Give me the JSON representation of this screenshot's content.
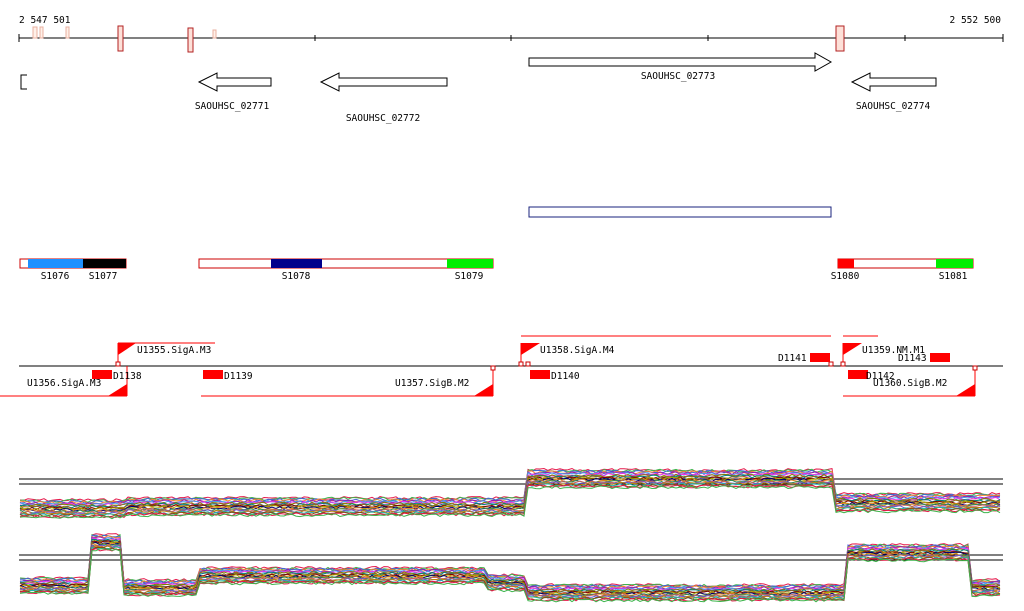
{
  "ruler": {
    "start_label": "2 547 501",
    "end_label": "2 552 500"
  },
  "genes": [
    {
      "name": "SAOUHSC_02771",
      "strand": "-"
    },
    {
      "name": "SAOUHSC_02772",
      "strand": "-"
    },
    {
      "name": "SAOUHSC_02773",
      "strand": "+"
    },
    {
      "name": "SAOUHSC_02774",
      "strand": "-"
    }
  ],
  "segments": [
    {
      "name": "S1076",
      "color": "#1e90ff"
    },
    {
      "name": "S1077",
      "color": "#000000"
    },
    {
      "name": "S1078",
      "color": "#00008b"
    },
    {
      "name": "S1079",
      "color": "#00ee00"
    },
    {
      "name": "S1080",
      "color": "#ff0000"
    },
    {
      "name": "S1081",
      "color": "#00ee00"
    }
  ],
  "promoters": [
    {
      "name": "U1355.SigA.M3",
      "strand": "+"
    },
    {
      "name": "U1356.SigA.M3",
      "strand": "-"
    },
    {
      "name": "U1357.SigB.M2",
      "strand": "-"
    },
    {
      "name": "U1358.SigA.M4",
      "strand": "+"
    },
    {
      "name": "U1359.NM.M1",
      "strand": "+"
    },
    {
      "name": "U1360.SigB.M2",
      "strand": "-"
    }
  ],
  "terminators": [
    {
      "name": "D1138"
    },
    {
      "name": "D1139"
    },
    {
      "name": "D1140"
    },
    {
      "name": "D1141"
    },
    {
      "name": "D1142"
    },
    {
      "name": "D1143"
    }
  ],
  "colors": {
    "feature_outline": "#cc0000",
    "promoter": "#ff0000",
    "transcript_box": "#1a237e"
  }
}
